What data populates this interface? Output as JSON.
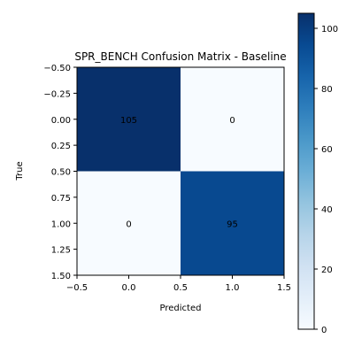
{
  "chart_data": {
    "type": "heatmap",
    "title": "SPR_BENCH Confusion Matrix - Baseline",
    "xlabel": "Predicted",
    "ylabel": "True",
    "matrix": [
      [
        105,
        0
      ],
      [
        0,
        95
      ]
    ],
    "cell_labels": [
      [
        "105",
        "0"
      ],
      [
        "0",
        "95"
      ]
    ],
    "xlim": [
      -0.5,
      1.5
    ],
    "ylim": [
      1.5,
      -0.5
    ],
    "x_ticks": [
      -0.5,
      0.0,
      0.5,
      1.0,
      1.5
    ],
    "x_tick_labels": [
      "−0.5",
      "0.0",
      "0.5",
      "1.0",
      "1.5"
    ],
    "y_ticks": [
      -0.5,
      -0.25,
      0.0,
      0.25,
      0.5,
      0.75,
      1.0,
      1.25,
      1.5
    ],
    "y_tick_labels": [
      "−0.50",
      "−0.25",
      "0.00",
      "0.25",
      "0.50",
      "0.75",
      "1.00",
      "1.25",
      "1.50"
    ],
    "colorbar": {
      "min": 0,
      "max": 105,
      "ticks": [
        0,
        20,
        40,
        60,
        80,
        100
      ],
      "tick_labels": [
        "0",
        "20",
        "40",
        "60",
        "80",
        "100"
      ],
      "colormap": "Blues"
    },
    "colors": {
      "low": "#f7fbff",
      "high": "#08306b"
    }
  }
}
